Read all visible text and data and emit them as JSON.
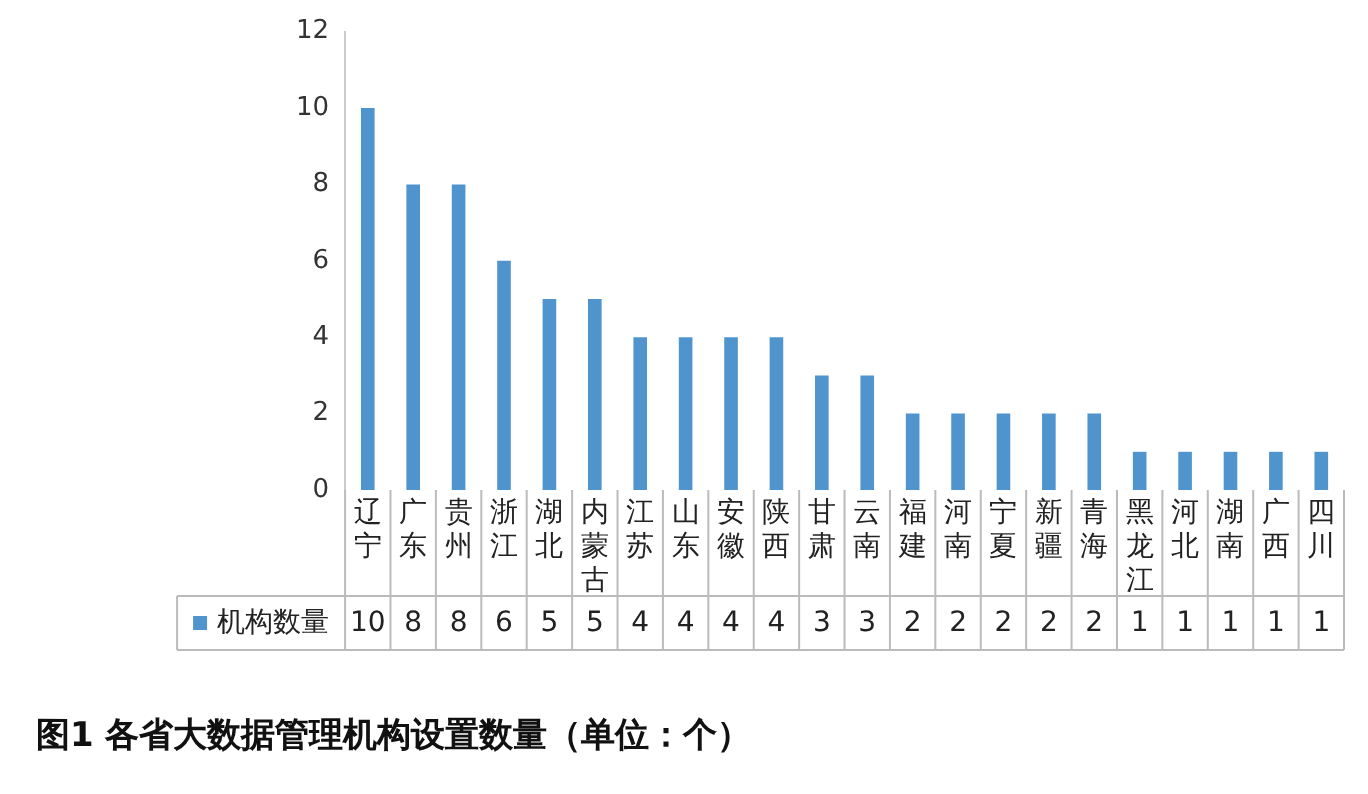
{
  "chart_data": {
    "type": "bar",
    "title": "图1 各省大数据管理机构设置数量（单位：个）",
    "categories": [
      "辽宁",
      "广东",
      "贵州",
      "浙江",
      "湖北",
      "内蒙古",
      "江苏",
      "山东",
      "安徽",
      "陕西",
      "甘肃",
      "云南",
      "福建",
      "河南",
      "宁夏",
      "新疆",
      "青海",
      "黑龙江",
      "河北",
      "湖南",
      "广西",
      "四川"
    ],
    "series": [
      {
        "name": "机构数量",
        "color": "#4f94cd",
        "values": [
          10,
          8,
          8,
          6,
          5,
          5,
          4,
          4,
          4,
          4,
          3,
          3,
          2,
          2,
          2,
          2,
          2,
          1,
          1,
          1,
          1,
          1
        ]
      }
    ],
    "ylim": [
      0,
      12
    ],
    "yticks": [
      0,
      2,
      4,
      6,
      8,
      10,
      12
    ],
    "grid": false,
    "legend": "bottom",
    "data_labels": true
  }
}
